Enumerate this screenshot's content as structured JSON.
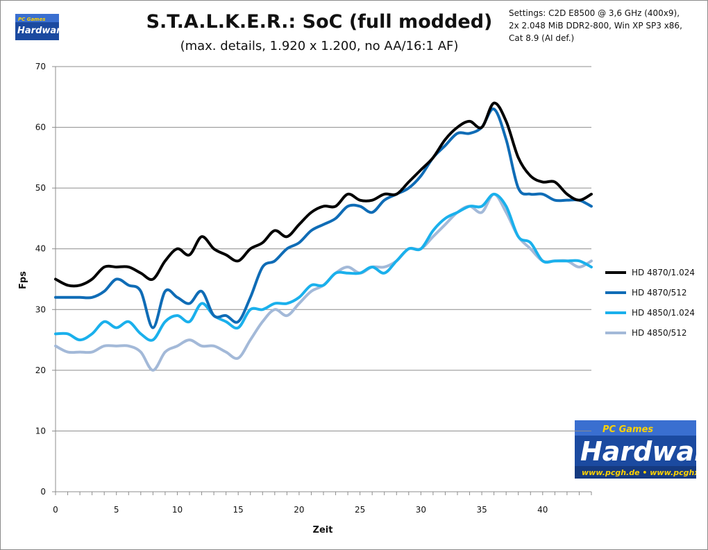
{
  "chart_data": {
    "type": "line",
    "title": "S.T.A.L.K.E.R.: SoC  (full modded)",
    "subtitle": "(max. details, 1.920 x 1.200, no AA/16:1 AF)",
    "xlabel": "Zeit",
    "ylabel": "Fps",
    "xlim": [
      0,
      44
    ],
    "ylim": [
      0,
      70
    ],
    "x_ticks": [
      0,
      5,
      10,
      15,
      20,
      25,
      30,
      35,
      40
    ],
    "y_ticks": [
      0,
      10,
      20,
      30,
      40,
      50,
      60,
      70
    ],
    "grid": "horizontal",
    "legend_position": "right",
    "x": [
      0,
      1,
      2,
      3,
      4,
      5,
      6,
      7,
      8,
      9,
      10,
      11,
      12,
      13,
      14,
      15,
      16,
      17,
      18,
      19,
      20,
      21,
      22,
      23,
      24,
      25,
      26,
      27,
      28,
      29,
      30,
      31,
      32,
      33,
      34,
      35,
      36,
      37,
      38,
      39,
      40,
      41,
      42,
      43,
      44
    ],
    "series": [
      {
        "name": "HD 4870/1.024",
        "color": "#000000",
        "values": [
          35,
          34,
          34,
          35,
          37,
          37,
          37,
          36,
          35,
          38,
          40,
          39,
          42,
          40,
          39,
          38,
          40,
          41,
          43,
          42,
          44,
          46,
          47,
          47,
          49,
          48,
          48,
          49,
          49,
          51,
          53,
          55,
          58,
          60,
          61,
          60,
          64,
          61,
          55,
          52,
          51,
          51,
          49,
          48,
          49
        ]
      },
      {
        "name": "HD 4870/512",
        "color": "#0f6cb6",
        "values": [
          32,
          32,
          32,
          32,
          33,
          35,
          34,
          33,
          27,
          33,
          32,
          31,
          33,
          29,
          29,
          28,
          32,
          37,
          38,
          40,
          41,
          43,
          44,
          45,
          47,
          47,
          46,
          48,
          49,
          50,
          52,
          55,
          57,
          59,
          59,
          60,
          63,
          58,
          50,
          49,
          49,
          48,
          48,
          48,
          47
        ]
      },
      {
        "name": "HD 4850/1.024",
        "color": "#1ab0ec",
        "values": [
          26,
          26,
          25,
          26,
          28,
          27,
          28,
          26,
          25,
          28,
          29,
          28,
          31,
          29,
          28,
          27,
          30,
          30,
          31,
          31,
          32,
          34,
          34,
          36,
          36,
          36,
          37,
          36,
          38,
          40,
          40,
          43,
          45,
          46,
          47,
          47,
          49,
          47,
          42,
          41,
          38,
          38,
          38,
          38,
          37
        ]
      },
      {
        "name": "HD 4850/512",
        "color": "#a3b9d8",
        "values": [
          24,
          23,
          23,
          23,
          24,
          24,
          24,
          23,
          20,
          23,
          24,
          25,
          24,
          24,
          23,
          22,
          25,
          28,
          30,
          29,
          31,
          33,
          34,
          36,
          37,
          36,
          37,
          37,
          38,
          40,
          40,
          42,
          44,
          46,
          47,
          46,
          49,
          46,
          42,
          40,
          38,
          38,
          38,
          37,
          38
        ]
      }
    ]
  },
  "settings": {
    "line1": "Settings: C2D E8500  @ 3,6 GHz (400x9),",
    "line2": "2x 2.048 MiB DDR2-800, Win XP SP3 x86,",
    "line3": "Cat 8.9 (AI def.)"
  },
  "logo": {
    "small_top": "PC Games",
    "small_word": "Hardware",
    "big_top": "PC Games",
    "big_word": "Hardware",
    "big_url": "www.pcgh.de • www.pcghx.com"
  }
}
